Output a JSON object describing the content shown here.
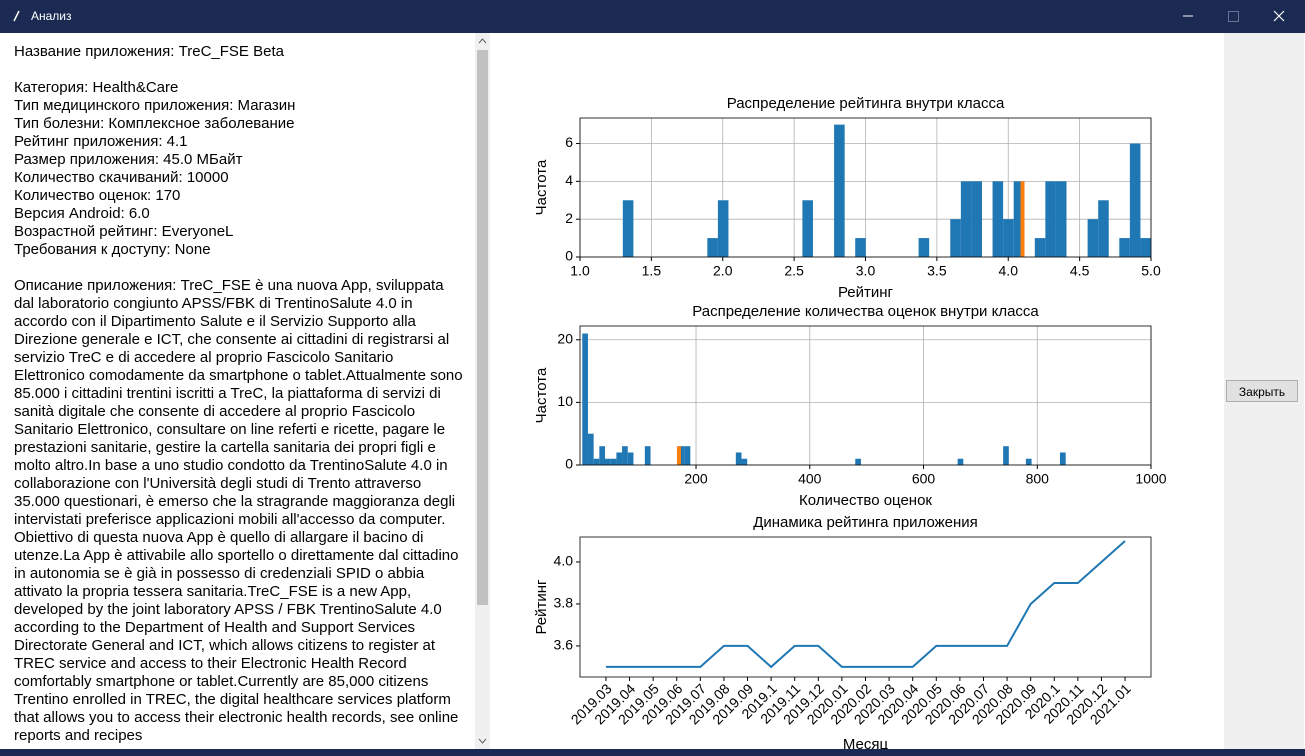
{
  "window": {
    "title": "Анализ"
  },
  "info": {
    "header": "Название приложения: TreC_FSE Beta",
    "details": [
      "Категория: Health&Care",
      "Тип медицинского приложения: Магазин",
      "Тип болезни: Комплексное заболевание",
      "Рейтинг приложения: 4.1",
      "Размер приложения: 45.0 МБайт",
      "Количество скачиваний: 10000",
      "Количество оценок: 170",
      "Версия Android: 6.0",
      "Возрастной рейтинг: EveryoneL",
      "Требования к доступу: None"
    ],
    "description": "Описание приложения: TreC_FSE è una nuova App, sviluppata dal laboratorio congiunto APSS/FBK di TrentinoSalute 4.0 in accordo con il Dipartimento Salute e il Servizio Supporto alla Direzione generale e ICT, che consente ai cittadini di registrarsi al servizio TreC e di accedere al proprio Fascicolo Sanitario Elettronico comodamente da smartphone o tablet.Attualmente sono 85.000 i cittadini trentini iscritti a TreC, la piattaforma di servizi di sanità digitale che consente di accedere al proprio Fascicolo Sanitario Elettronico, consultare on line referti e ricette, pagare le prestazioni sanitarie, gestire la cartella sanitaria dei propri figli e molto altro.In base a uno studio condotto da TrentinoSalute 4.0 in collaborazione con l'Università degli studi di Trento attraverso 35.000 questionari, è emerso che la stragrande maggioranza degli intervistati preferisce applicazioni mobili all'accesso da computer. Obiettivo di questa nuova App è quello di allargare il bacino di utenze.La App è attivabile allo sportello o direttamente dal cittadino in autonomia se è già in possesso di credenziali SPID o abbia attivato la propria tessera sanitaria.TreC_FSE is a new App, developed by the joint laboratory APSS / FBK TrentinoSalute 4.0 according to the Department of Health and Support Services Directorate General and ICT, which allows citizens to register at TREC service and access to their Electronic Health Record comfortably smartphone or tablet.Currently are 85,000 citizens Trentino enrolled in TREC, the digital healthcare services platform that allows you to access their electronic health records, see online reports and recipes"
  },
  "close_button": "Закрыть",
  "chart_data": [
    {
      "type": "histogram",
      "title": "Распределение рейтинга внутри класса",
      "xlabel": "Рейтинг",
      "ylabel": "Частота",
      "bins": [
        1.3,
        1.374,
        1.448,
        1.522,
        1.596,
        1.67,
        1.744,
        1.818,
        1.892,
        1.966,
        2.04,
        2.114,
        2.188,
        2.262,
        2.336,
        2.41,
        2.484,
        2.558,
        2.632,
        2.706,
        2.78,
        2.854,
        2.928,
        3.002,
        3.076,
        3.15,
        3.224,
        3.298,
        3.372,
        3.446,
        3.52,
        3.594,
        3.668,
        3.742,
        3.816,
        3.89,
        3.964,
        4.038,
        4.112,
        4.186,
        4.26,
        4.334,
        4.408,
        4.482,
        4.556,
        4.63,
        4.704,
        4.778,
        4.852,
        4.926,
        5.0
      ],
      "counts": [
        3,
        0,
        0,
        0,
        0,
        0,
        0,
        0,
        1,
        3,
        0,
        0,
        0,
        0,
        0,
        0,
        0,
        3,
        0,
        0,
        7,
        0,
        1,
        0,
        0,
        0,
        0,
        0,
        1,
        0,
        0,
        2,
        4,
        4,
        0,
        4,
        2,
        4,
        0,
        1,
        4,
        4,
        0,
        0,
        2,
        3,
        0,
        1,
        6,
        1
      ],
      "color": "#1f77b4",
      "highlight": {
        "x": 4.1,
        "count": 4,
        "color": "#ff7f0e"
      },
      "xlim": [
        1,
        5
      ],
      "xticks": [
        {
          "value": 1,
          "label": "1.0"
        },
        1.5,
        {
          "value": 2,
          "label": "2.0"
        },
        2.5,
        {
          "value": 3,
          "label": "3.0"
        },
        3.5,
        {
          "value": 4,
          "label": "4.0"
        },
        4.5,
        {
          "value": 5,
          "label": "5.0"
        }
      ],
      "ylim": [
        0,
        7.35
      ],
      "yticks": [
        0,
        2,
        4,
        6
      ],
      "grid": true
    },
    {
      "type": "histogram",
      "title": "Распределение количества оценок внутри класса",
      "xlabel": "Количество оценок",
      "ylabel": "Частота",
      "bins": [
        0,
        10,
        20,
        30,
        40,
        50,
        60,
        70,
        80,
        90,
        100,
        110,
        120,
        130,
        140,
        150,
        160,
        170,
        180,
        190,
        200,
        210,
        220,
        230,
        240,
        250,
        260,
        270,
        280,
        290,
        300,
        310,
        320,
        330,
        340,
        350,
        360,
        370,
        380,
        390,
        400,
        410,
        420,
        430,
        440,
        450,
        460,
        470,
        480,
        490,
        500,
        510,
        520,
        530,
        540,
        550,
        560,
        570,
        580,
        590,
        600,
        610,
        620,
        630,
        640,
        650,
        660,
        670,
        680,
        690,
        700,
        710,
        720,
        730,
        740,
        750,
        760,
        770,
        780,
        790,
        800,
        810,
        820,
        830,
        840,
        850,
        860,
        870,
        880,
        890,
        900,
        910,
        920,
        930,
        940,
        950,
        960,
        970,
        980,
        990,
        1000
      ],
      "counts": [
        21,
        5,
        1,
        3,
        1,
        1,
        2,
        3,
        2,
        0,
        0,
        3,
        0,
        0,
        0,
        0,
        0,
        3,
        3,
        0,
        0,
        0,
        0,
        0,
        0,
        0,
        0,
        2,
        1,
        0,
        0,
        0,
        0,
        0,
        0,
        0,
        0,
        0,
        0,
        0,
        0,
        0,
        0,
        0,
        0,
        0,
        0,
        0,
        1,
        0,
        0,
        0,
        0,
        0,
        0,
        0,
        0,
        0,
        0,
        0,
        0,
        0,
        0,
        0,
        0,
        0,
        1,
        0,
        0,
        0,
        0,
        0,
        0,
        0,
        3,
        0,
        0,
        0,
        1,
        0,
        0,
        0,
        0,
        0,
        2,
        0,
        0,
        0,
        0,
        0,
        0,
        0,
        0,
        0,
        0,
        0,
        0,
        0,
        0,
        0
      ],
      "color": "#1f77b4",
      "highlight": {
        "x": 170,
        "count": 3,
        "color": "#ff7f0e"
      },
      "xlim": [
        -4,
        1000
      ],
      "xticks": [
        200,
        400,
        600,
        800,
        1000
      ],
      "ylim": [
        0,
        22.2
      ],
      "yticks": [
        0,
        10,
        20
      ],
      "grid": true
    },
    {
      "type": "line",
      "title": "Динамика рейтинга приложения",
      "xlabel": "Месяц",
      "ylabel": "Рейтинг",
      "categories": [
        "2019.03",
        "2019.04",
        "2019.05",
        "2019.06",
        "2019.07",
        "2019.08",
        "2019.09",
        "2019.1",
        "2019.11",
        "2019.12",
        "2020.01",
        "2020.02",
        "2020.03",
        "2020.04",
        "2020.05",
        "2020.06",
        "2020.07",
        "2020.08",
        "2020.09",
        "2020.1",
        "2020.11",
        "2020.12",
        "2021.01"
      ],
      "values": [
        3.5,
        3.5,
        3.5,
        3.5,
        3.5,
        3.6,
        3.6,
        3.5,
        3.6,
        3.6,
        3.5,
        3.5,
        3.5,
        3.5,
        3.6,
        3.6,
        3.6,
        3.6,
        3.8,
        3.9,
        3.9,
        4.0,
        4.1
      ],
      "color": "#1f77b4",
      "ylim": [
        3.452,
        4.119
      ],
      "yticks": [
        3.6,
        3.8,
        {
          "value": 4,
          "label": "4.0"
        }
      ],
      "grid": false
    }
  ]
}
